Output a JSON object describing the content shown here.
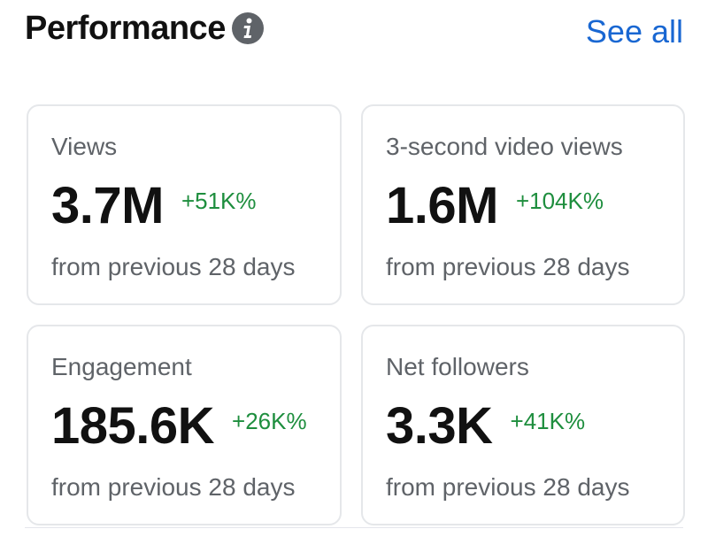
{
  "header": {
    "title": "Performance",
    "info_icon": "info-circle-icon",
    "see_all_label": "See all"
  },
  "colors": {
    "title": "#111111",
    "link": "#1967d2",
    "positive_change": "#1e8e3e",
    "muted_text": "#5f6368",
    "card_border": "#e5e7ea"
  },
  "metrics": [
    {
      "label": "Views",
      "value": "3.7M",
      "change": "+51K%",
      "period": "from previous 28 days"
    },
    {
      "label": "3-second video views",
      "value": "1.6M",
      "change": "+104K%",
      "period": "from previous 28 days"
    },
    {
      "label": "Engagement",
      "value": "185.6K",
      "change": "+26K%",
      "period": "from previous 28 days"
    },
    {
      "label": "Net followers",
      "value": "3.3K",
      "change": "+41K%",
      "period": "from previous 28 days"
    }
  ]
}
